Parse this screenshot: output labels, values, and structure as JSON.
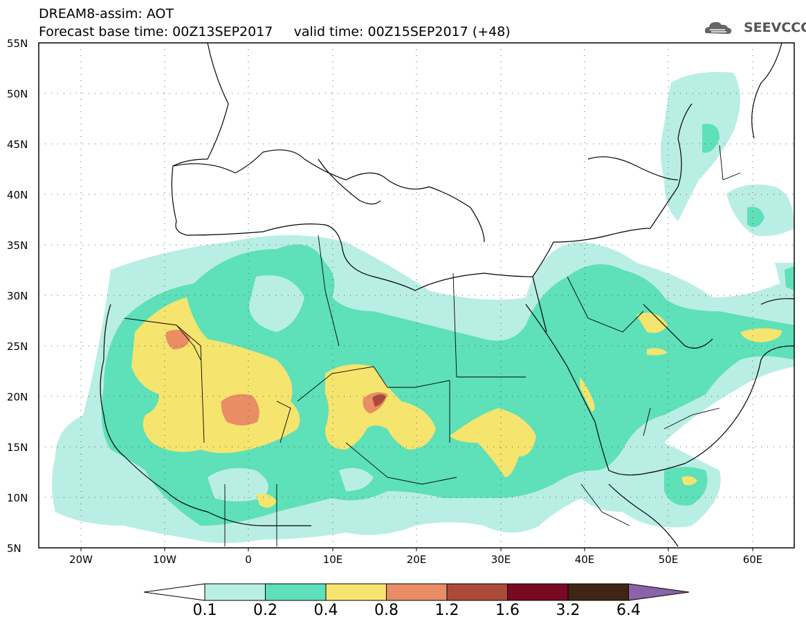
{
  "header": {
    "line1": "DREAM8-assim: AOT",
    "line2": "Forecast base time: 00Z13SEP2017     valid time: 00Z15SEP2017 (+48)",
    "logo_text": "SEEVCCC"
  },
  "axes": {
    "lat_labels": [
      "55N",
      "50N",
      "45N",
      "40N",
      "35N",
      "30N",
      "25N",
      "20N",
      "15N",
      "10N",
      "5N"
    ],
    "lon_labels": [
      "20W",
      "10W",
      "0",
      "10E",
      "20E",
      "30E",
      "40E",
      "50E",
      "60E"
    ],
    "lat_range": [
      5,
      55
    ],
    "lon_range": [
      -25,
      65
    ],
    "grid": "dotted"
  },
  "legend": {
    "labels": [
      "0.1",
      "0.2",
      "0.4",
      "0.8",
      "1.2",
      "1.6",
      "3.2",
      "6.4"
    ],
    "colors": [
      "#ffffff",
      "#b9eee4",
      "#5ee0b8",
      "#f5e46e",
      "#e88d64",
      "#ab4a3a",
      "#7a0a24",
      "#3e2616",
      "#8a63a8"
    ]
  }
}
